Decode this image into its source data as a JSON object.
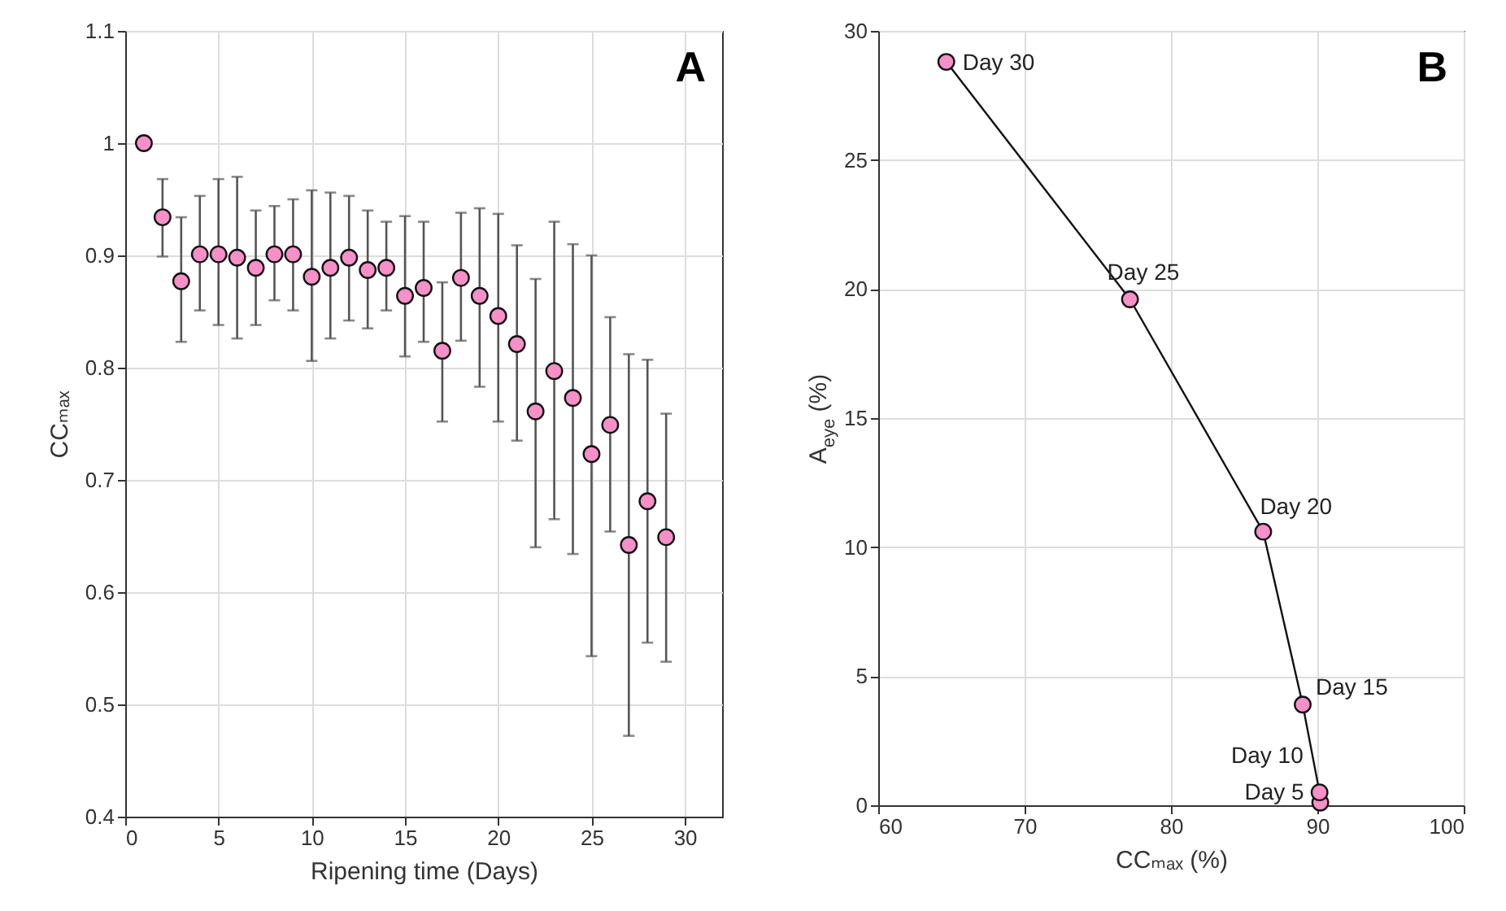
{
  "chart_data": [
    {
      "type": "scatter",
      "xlabel": "Ripening time (Days)",
      "ylabel": "CCₘₐₓ",
      "annotations": [
        "A"
      ],
      "x": [
        1,
        2,
        3,
        4,
        5,
        6,
        7,
        8,
        9,
        10,
        11,
        12,
        13,
        14,
        15,
        16,
        17,
        18,
        19,
        20,
        21,
        22,
        23,
        24,
        25,
        26,
        27,
        28,
        29
      ],
      "series": [
        {
          "color": "#f78fc8",
          "values": [
            1.0,
            0.934,
            0.877,
            0.901,
            0.901,
            0.898,
            0.889,
            0.901,
            0.901,
            0.881,
            0.889,
            0.898,
            0.887,
            0.889,
            0.864,
            0.871,
            0.815,
            0.88,
            0.864,
            0.846,
            0.821,
            0.761,
            0.797,
            0.773,
            0.723,
            0.749,
            0.642,
            0.681,
            0.649
          ],
          "errors": [
            null,
            [
              0.899,
              0.968
            ],
            [
              0.823,
              0.934
            ],
            [
              0.851,
              0.953
            ],
            [
              0.838,
              0.968
            ],
            [
              0.826,
              0.97
            ],
            [
              0.838,
              0.94
            ],
            [
              0.86,
              0.944
            ],
            [
              0.851,
              0.95
            ],
            [
              0.806,
              0.958
            ],
            [
              0.826,
              0.956
            ],
            [
              0.842,
              0.953
            ],
            [
              0.835,
              0.94
            ],
            [
              0.851,
              0.93
            ],
            [
              0.81,
              0.935
            ],
            [
              0.823,
              0.93
            ],
            [
              0.752,
              0.876
            ],
            [
              0.824,
              0.938
            ],
            [
              0.783,
              0.942
            ],
            [
              0.752,
              0.937
            ],
            [
              0.735,
              0.909
            ],
            [
              0.64,
              0.879
            ],
            [
              0.665,
              0.93
            ],
            [
              0.634,
              0.91
            ],
            [
              0.543,
              0.9
            ],
            [
              0.654,
              0.845
            ],
            [
              0.472,
              0.812
            ],
            [
              0.555,
              0.807
            ],
            [
              0.538,
              0.759
            ]
          ]
        }
      ],
      "xlim": [
        0,
        32
      ],
      "xticks": [
        0,
        5,
        10,
        15,
        20,
        25,
        30
      ],
      "ylim": [
        0.4,
        1.1
      ],
      "yticks": [
        0.4,
        0.5,
        0.6,
        0.7,
        0.8,
        0.9,
        1,
        1.1
      ],
      "grid": true,
      "marker": "circle"
    },
    {
      "type": "line",
      "xlabel": "CCₘₐₓ (%)",
      "ylabel": "A$_{eye}$ (%)",
      "annotations": [
        "B"
      ],
      "x": [
        90.2,
        90.15,
        89.0,
        86.3,
        77.2,
        64.65
      ],
      "series": [
        {
          "color": "#f78fc8",
          "values": [
            0.1,
            0.5,
            3.9,
            10.6,
            19.6,
            28.8
          ],
          "value_labels": [
            "Day 5",
            "Day 10",
            "Day 15",
            "Day 20",
            "Day 25",
            "Day 30"
          ]
        }
      ],
      "xlim": [
        60,
        100
      ],
      "xticks": [
        60,
        70,
        80,
        90,
        100
      ],
      "ylim": [
        0,
        30
      ],
      "yticks": [
        0,
        5,
        10,
        15,
        20,
        25,
        30
      ],
      "grid": true,
      "marker": "circle"
    }
  ]
}
